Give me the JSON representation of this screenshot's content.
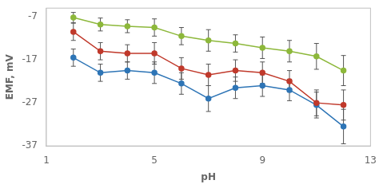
{
  "chart_data": {
    "type": "line",
    "xlabel": "pH",
    "ylabel": "EMF, mV",
    "x": [
      2,
      3,
      4,
      5,
      6,
      7,
      8,
      9,
      10,
      11,
      12
    ],
    "series": [
      {
        "color": "#8DB83B",
        "values": [
          -7.2,
          -8.8,
          -9.2,
          -9.5,
          -11.5,
          -12.5,
          -13.2,
          -14.2,
          -15.0,
          -16.2,
          -19.5
        ],
        "errors": [
          1.2,
          1.5,
          1.5,
          2.0,
          2.0,
          2.5,
          2.0,
          2.5,
          2.5,
          3.0,
          3.5
        ]
      },
      {
        "color": "#C0392B",
        "values": [
          -10.5,
          -15.0,
          -15.5,
          -15.5,
          -19.0,
          -20.5,
          -19.5,
          -20.0,
          -22.0,
          -27.0,
          -27.5
        ],
        "errors": [
          2.0,
          2.0,
          2.0,
          2.5,
          2.5,
          2.5,
          2.5,
          2.5,
          2.5,
          3.0,
          3.5
        ]
      },
      {
        "color": "#2E75B6",
        "values": [
          -16.5,
          -20.0,
          -19.5,
          -20.0,
          -22.5,
          -26.0,
          -23.5,
          -23.0,
          -24.0,
          -27.5,
          -32.5
        ],
        "errors": [
          2.0,
          2.0,
          2.0,
          2.5,
          2.5,
          3.0,
          2.5,
          2.5,
          2.5,
          3.0,
          4.0
        ]
      }
    ],
    "xlim": [
      1,
      13
    ],
    "ylim": [
      -37,
      -5
    ],
    "xticks": [
      1,
      5,
      9,
      13
    ],
    "yticks": [
      -37,
      -27,
      -17,
      -7
    ],
    "grid": false,
    "marker": "circle"
  }
}
